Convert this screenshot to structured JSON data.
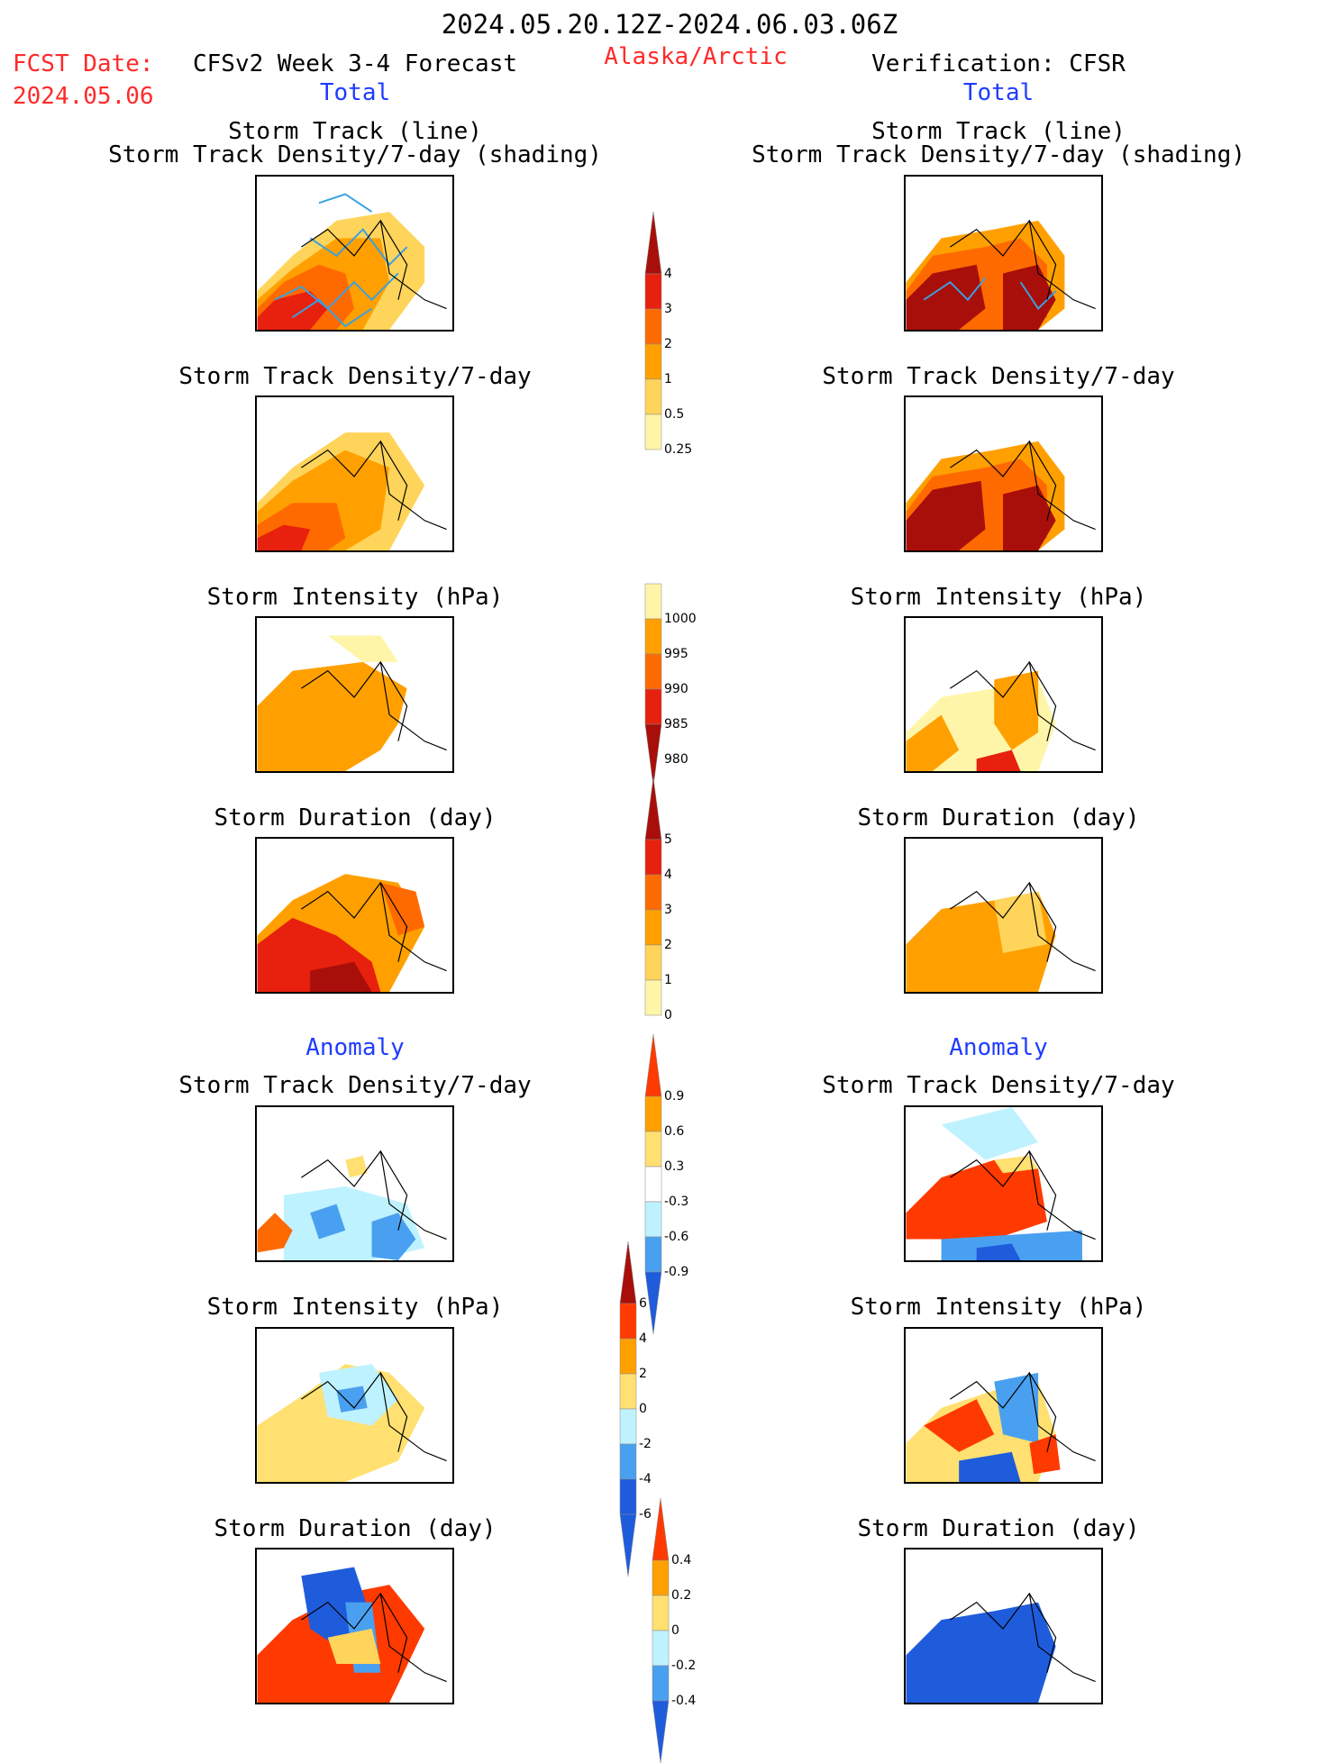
{
  "header": {
    "date_range": "2024.05.20.12Z-2024.06.03.06Z",
    "fcst_label": "FCST Date:",
    "fcst_date": "2024.05.06",
    "model_title": "CFSv2 Week 3-4 Forecast",
    "region": "Alaska/Arctic",
    "verification": "Verification: CFSR",
    "left_total": "Total",
    "right_total": "Total"
  },
  "sections": {
    "left_anomaly": "Anomaly",
    "right_anomaly": "Anomaly"
  },
  "titles": {
    "storm_track_line": "Storm Track (line)",
    "storm_track_shading": "Storm Track Density/7-day (shading)",
    "storm_track_density": "Storm Track Density/7-day",
    "storm_intensity": "Storm Intensity (hPa)",
    "storm_duration": "Storm Duration (day)"
  },
  "colorbars": {
    "density": [
      "4",
      "3",
      "2",
      "1",
      "0.5",
      "0.25"
    ],
    "intensity": [
      "1000",
      "995",
      "990",
      "985",
      "980"
    ],
    "duration": [
      "5",
      "4",
      "3",
      "2",
      "1",
      "0"
    ],
    "density_anom": [
      "0.9",
      "0.6",
      "0.3",
      "-0.3",
      "-0.6",
      "-0.9"
    ],
    "intensity_anom": [
      "6",
      "4",
      "2",
      "0",
      "-2",
      "-4",
      "-6"
    ],
    "duration_anom": [
      "0.4",
      "0.2",
      "0",
      "-0.2",
      "-0.4"
    ]
  },
  "colors": {
    "text_red": "#ff2a2a",
    "text_blue": "#1f3cff",
    "storm_track_line": "#3aa0e0"
  }
}
